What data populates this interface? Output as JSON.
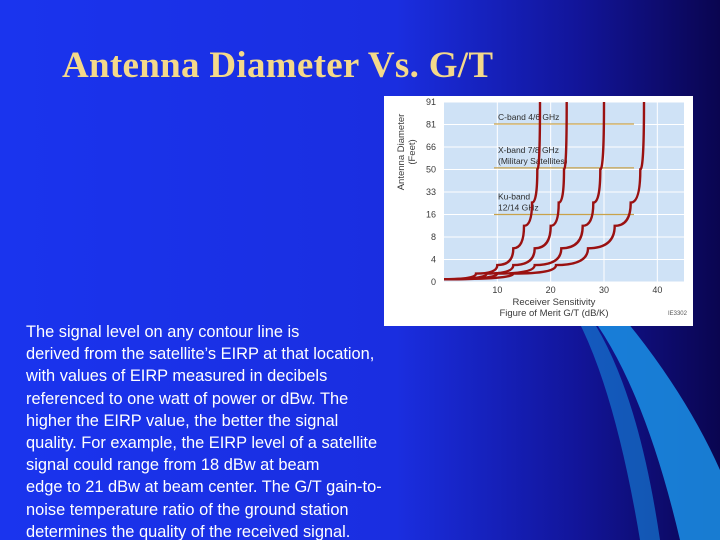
{
  "title": "Antenna Diameter Vs. G/T",
  "body_text": "The signal level on any contour line is\nderived from the satellite’s EIRP at that location,\nwith values of EIRP measured in decibels\nreferenced to one watt of power or dBw. The\nhigher the EIRP value, the better the signal\nquality. For example, the EIRP level of a satellite\nsignal could range from 18 dBw at beam\nedge to 21 dBw at beam center. The G/T gain-to-\nnoise temperature ratio of the ground station\ndetermines the quality of the received signal.",
  "colors": {
    "title": "#f4d98a",
    "chart_background": "#cfe2f6",
    "curve": "#9a1111",
    "band_line": "#c9a24a",
    "arc": "#1a8ae0"
  },
  "chart_data": {
    "type": "line",
    "title": "",
    "xlabel": "Receiver Sensitivity\nFigure of Merit G/T (dB/K)",
    "ylabel": "Antenna Diameter\n(Feet)",
    "xlim": [
      0,
      45
    ],
    "x_ticks": [
      10,
      20,
      30,
      40
    ],
    "y_ticks": [
      0,
      4,
      8,
      16,
      33,
      50,
      66,
      81,
      91
    ],
    "grid": true,
    "code_label": "IE3302",
    "series": [
      {
        "x": [
          0,
          6,
          10,
          13,
          15,
          16.5,
          17.5,
          18
        ],
        "y": [
          0.5,
          1.5,
          3,
          6,
          12,
          25,
          50,
          91
        ]
      },
      {
        "x": [
          0,
          8,
          13,
          17,
          20,
          21.5,
          22.5,
          23
        ],
        "y": [
          0.5,
          1.5,
          3,
          6,
          12,
          25,
          50,
          91
        ]
      },
      {
        "x": [
          0,
          10,
          17,
          22,
          26,
          28,
          29.3,
          30
        ],
        "y": [
          0.5,
          1.5,
          3,
          6,
          12,
          25,
          50,
          91
        ]
      },
      {
        "x": [
          0,
          13,
          21,
          27,
          32,
          35,
          36.8,
          37.5
        ],
        "y": [
          0.5,
          1.5,
          3,
          6,
          12,
          25,
          50,
          91
        ]
      }
    ],
    "bands": [
      {
        "label": [
          "C-band 4/6 GHz"
        ],
        "y": 83
      },
      {
        "label": [
          "X-band 7/8 GHz",
          "(Military Satellites)"
        ],
        "y": 54
      },
      {
        "label": [
          "Ku-band",
          "12/14 GHz"
        ],
        "y": 19
      }
    ]
  }
}
